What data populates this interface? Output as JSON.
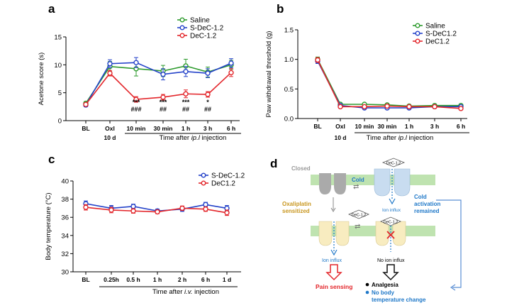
{
  "panels": {
    "a": "a",
    "b": "b",
    "c": "c",
    "d": "d"
  },
  "colors": {
    "saline": "#2e9b2e",
    "sdec": "#2442c9",
    "dec": "#e3262b",
    "closed_channel": "#aaaaaa",
    "open_channel": "#c8dcf0",
    "sensitized_channel": "#f8ecc0",
    "membrane": "#bfe3b0",
    "orange_text": "#c8961e",
    "blue_text": "#1f78c8",
    "red_text": "#e3262b"
  },
  "chart_data": [
    {
      "panel": "a",
      "type": "line",
      "ylabel": "Acetone score (s)",
      "xlabel": "Time after ip.l injection",
      "ylim": [
        0,
        15
      ],
      "yticks": [
        0,
        5,
        10,
        15
      ],
      "categories": [
        "BL",
        "Oxl",
        "10 min",
        "30 min",
        "1 h",
        "3 h",
        "6 h"
      ],
      "sublabel": "10 d",
      "series": [
        {
          "name": "Saline",
          "color": "#2e9b2e",
          "values": [
            3.1,
            9.7,
            9.3,
            8.9,
            9.8,
            8.7,
            10.0
          ],
          "err": [
            0.3,
            0.9,
            1.3,
            1.0,
            1.2,
            0.9,
            0.8
          ]
        },
        {
          "name": "S-DeC-1.2",
          "color": "#2442c9",
          "values": [
            2.8,
            10.2,
            10.4,
            8.3,
            8.8,
            8.5,
            10.3
          ],
          "err": [
            0.3,
            0.7,
            0.9,
            1.0,
            0.9,
            0.8,
            0.8
          ]
        },
        {
          "name": "DeC-1.2",
          "color": "#e3262b",
          "values": [
            2.9,
            8.5,
            3.8,
            4.2,
            4.8,
            4.7,
            8.6
          ],
          "err": [
            0.3,
            0.5,
            0.5,
            0.5,
            0.7,
            0.5,
            0.7
          ]
        }
      ],
      "annotations": [
        {
          "category": "10 min",
          "lines": [
            "***",
            "###"
          ]
        },
        {
          "category": "30 min",
          "lines": [
            "***",
            "##"
          ]
        },
        {
          "category": "1 h",
          "lines": [
            "***",
            "##"
          ]
        },
        {
          "category": "3 h",
          "lines": [
            "*",
            "##"
          ]
        }
      ]
    },
    {
      "panel": "b",
      "type": "line",
      "ylabel": "Paw withdrawal threshold (g)",
      "xlabel": "Time after ip.l injection",
      "ylim": [
        0,
        1.5
      ],
      "yticks": [
        "0.0",
        "0.5",
        "1.0",
        "1.5"
      ],
      "categories": [
        "BL",
        "Oxl",
        "10 min",
        "30 min",
        "1 h",
        "3 h",
        "6 h"
      ],
      "sublabel": "10 d",
      "series": [
        {
          "name": "Saline",
          "color": "#2e9b2e",
          "values": [
            1.0,
            0.24,
            0.24,
            0.23,
            0.21,
            0.22,
            0.22
          ],
          "err": [
            0.04,
            0.02,
            0.02,
            0.02,
            0.02,
            0.02,
            0.02
          ]
        },
        {
          "name": "S-DeC1.2",
          "color": "#2442c9",
          "values": [
            0.97,
            0.22,
            0.18,
            0.18,
            0.18,
            0.2,
            0.2
          ],
          "err": [
            0.04,
            0.02,
            0.02,
            0.02,
            0.02,
            0.02,
            0.02
          ]
        },
        {
          "name": "DeC1.2",
          "color": "#e3262b",
          "values": [
            0.99,
            0.2,
            0.2,
            0.21,
            0.2,
            0.2,
            0.17
          ],
          "err": [
            0.04,
            0.02,
            0.02,
            0.02,
            0.02,
            0.02,
            0.02
          ]
        }
      ]
    },
    {
      "panel": "c",
      "type": "line",
      "ylabel": "Body temperature (°C)",
      "xlabel": "Time after i.v. injection",
      "ylim": [
        30,
        40
      ],
      "yticks": [
        30,
        32,
        34,
        36,
        38,
        40
      ],
      "categories": [
        "BL",
        "0.25h",
        "0.5 h",
        "1 h",
        "2 h",
        "6 h",
        "1 d"
      ],
      "series": [
        {
          "name": "S-DeC-1.2",
          "color": "#2442c9",
          "values": [
            37.5,
            37.0,
            37.2,
            36.7,
            36.9,
            37.4,
            37.0
          ],
          "err": [
            0.3,
            0.3,
            0.25,
            0.2,
            0.25,
            0.25,
            0.3
          ]
        },
        {
          "name": "DeC1.2",
          "color": "#e3262b",
          "values": [
            37.1,
            36.8,
            36.7,
            36.6,
            37.0,
            36.9,
            36.5
          ],
          "err": [
            0.3,
            0.3,
            0.25,
            0.2,
            0.25,
            0.25,
            0.3
          ]
        }
      ]
    }
  ],
  "diagram": {
    "closed": "Closed",
    "cold": "Cold",
    "dec_tag": "DeC-1.2",
    "cold_activation": [
      "Cold",
      "activation",
      "remained"
    ],
    "ion_influx": "Ion influx",
    "oxaliplatin": [
      "Oxaliplatin",
      "sensitized"
    ],
    "ion_influx_left": "Ion influx",
    "no_ion_influx": "No ion influx",
    "pain_sensing": "Pain sensing",
    "analgesia": "Analgesia",
    "no_body_temp": [
      "No body",
      "temperature change"
    ]
  }
}
